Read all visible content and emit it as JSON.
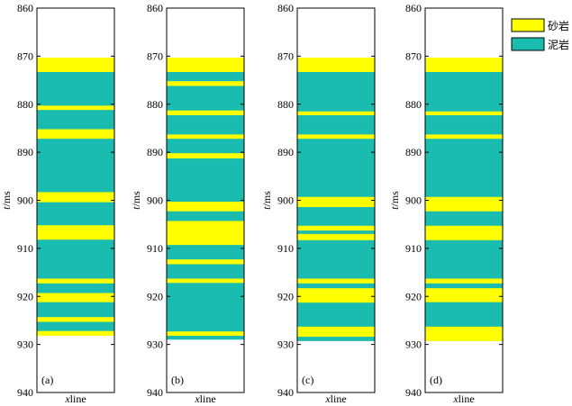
{
  "chart_data": {
    "type": "heatmap",
    "ylabel": "t/ms",
    "ylabel_italic": "t",
    "ylabel_rest": "/ms",
    "xlabel": "xline",
    "xlabel_italic": "x",
    "xlabel_rest": "line",
    "ylim": [
      860,
      940
    ],
    "yticks": [
      "860",
      "870",
      "880",
      "890",
      "900",
      "910",
      "920",
      "930",
      "940"
    ],
    "colors": {
      "sand": "#ffff00",
      "mud": "#1abcb0"
    },
    "legend": [
      {
        "label": "砂岩",
        "color": "#ffff00"
      },
      {
        "label": "泥岩",
        "color": "#1abcb0"
      }
    ],
    "legend_position": "top-right",
    "panels": [
      {
        "label": "(a)",
        "range": [
          870.3,
          928.2
        ],
        "sand": [
          [
            870.3,
            873.3
          ],
          [
            880.3,
            881.2
          ],
          [
            885.2,
            887.2
          ],
          [
            898.3,
            900.4
          ],
          [
            905.2,
            908.2
          ],
          [
            916.3,
            917.3
          ],
          [
            919.3,
            921.2
          ],
          [
            924.3,
            925.3
          ],
          [
            927.2,
            928.2
          ]
        ]
      },
      {
        "label": "(b)",
        "range": [
          870.3,
          929.0
        ],
        "sand": [
          [
            870.3,
            873.3
          ],
          [
            875.2,
            876.2
          ],
          [
            881.3,
            882.3
          ],
          [
            886.3,
            887.2
          ],
          [
            890.2,
            891.3
          ],
          [
            900.3,
            902.3
          ],
          [
            904.3,
            909.3
          ],
          [
            912.3,
            913.3
          ],
          [
            916.3,
            917.2
          ],
          [
            927.3,
            928.2
          ]
        ]
      },
      {
        "label": "(c)",
        "range": [
          870.3,
          929.3
        ],
        "sand": [
          [
            870.3,
            873.3
          ],
          [
            881.5,
            882.3
          ],
          [
            886.3,
            887.2
          ],
          [
            899.3,
            901.4
          ],
          [
            905.3,
            906.3
          ],
          [
            907.0,
            908.3
          ],
          [
            916.3,
            917.3
          ],
          [
            918.3,
            921.3
          ],
          [
            926.3,
            928.4
          ]
        ]
      },
      {
        "label": "(d)",
        "range": [
          870.3,
          929.3
        ],
        "sand": [
          [
            870.3,
            873.3
          ],
          [
            881.5,
            882.3
          ],
          [
            886.3,
            887.2
          ],
          [
            899.3,
            902.3
          ],
          [
            905.3,
            908.3
          ],
          [
            916.3,
            917.3
          ],
          [
            918.3,
            921.2
          ],
          [
            926.3,
            929.3
          ]
        ]
      }
    ]
  }
}
